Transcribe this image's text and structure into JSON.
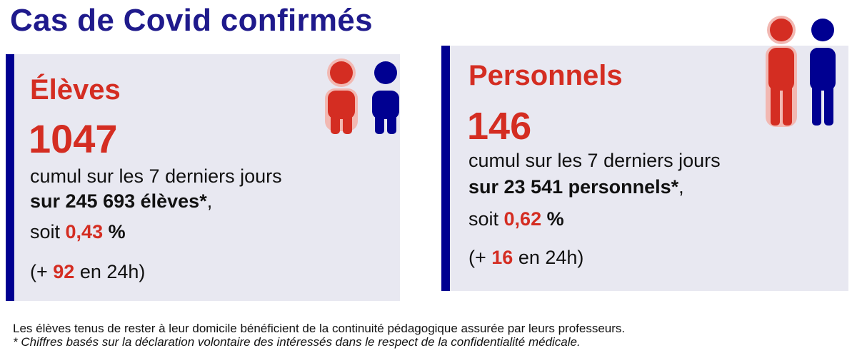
{
  "title": "Cas de Covid confirmés",
  "eleves": {
    "heading": "Élèves",
    "count": "1047",
    "cumul": "cumul sur les 7 derniers jours",
    "total_prefix": "sur 245 693 élèves*",
    "total_suffix": ",",
    "soit_prefix": "soit ",
    "percent_value": "0,43",
    "percent_sign": " %",
    "delta_prefix": "(+ ",
    "delta_value": "92",
    "delta_suffix": " en 24h)",
    "icon": "student-pair-icon"
  },
  "personnels": {
    "heading": "Personnels",
    "count": "146",
    "cumul": "cumul sur les 7 derniers jours",
    "total_prefix": "sur 23 541 personnels*",
    "total_suffix": ",",
    "soit_prefix": "soit ",
    "percent_value": "0,62",
    "percent_sign": " %",
    "delta_prefix": "(+ ",
    "delta_value": "16",
    "delta_suffix": " en 24h)",
    "icon": "adult-pair-icon"
  },
  "footnotes": {
    "line1": "Les élèves tenus de rester à leur domicile bénéficient de la continuité pédagogique assurée par leurs professeurs.",
    "line2": "* Chiffres basés sur la déclaration volontaire des intéressés dans le respect de la confidentialité médicale."
  },
  "colors": {
    "navy": "#000091",
    "title_blue": "#1f1a8c",
    "red": "#d42d22",
    "panel_bg": "#e8e8f1"
  }
}
